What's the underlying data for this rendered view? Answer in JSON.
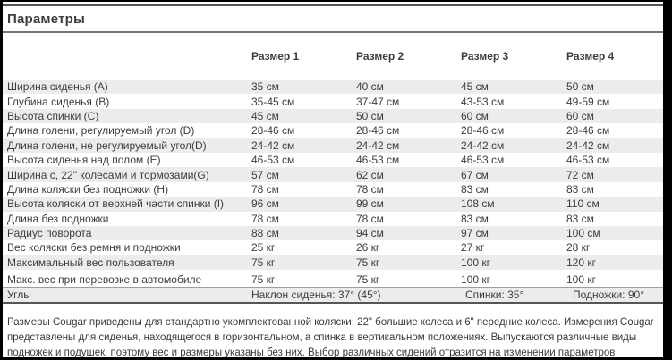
{
  "title": "Параметры",
  "table": {
    "col_headers": [
      "Размер 1",
      "Размер 2",
      "Размер 3",
      "Размер 4"
    ],
    "rows": [
      {
        "label": "Ширина сиденья (А)",
        "values": [
          "35 см",
          "40 см",
          "45 см",
          "50 см"
        ]
      },
      {
        "label": "Глубина сиденья (В)",
        "values": [
          "35-45 см",
          "37-47 см",
          "43-53 см",
          "49-59 см"
        ]
      },
      {
        "label": "Высота спинки (С)",
        "values": [
          "45 см",
          "50 см",
          "60 см",
          "60 см"
        ]
      },
      {
        "label": "Длина голени, регулируемый угол (D)",
        "values": [
          "28-46 см",
          "28-46 см",
          "28-46 см",
          "28-46 см"
        ]
      },
      {
        "label": "Длина голени, не регулируемый угол(D)",
        "values": [
          "24-42 см",
          "24-42 см",
          "24-42 см",
          "24-42 см"
        ]
      },
      {
        "label": "Высота сиденья над полом (Е)",
        "values": [
          "46-53 см",
          "46-53 см",
          "46-53 см",
          "46-53 см"
        ]
      },
      {
        "label": "Ширина с, 22\" колесами и тормозами(G)",
        "values": [
          "57 см",
          "62 см",
          "67 см",
          "72 см"
        ]
      },
      {
        "label": "Длина коляски без подножки (Н)",
        "values": [
          "78 см",
          "78 см",
          "83 см",
          "83 см"
        ]
      },
      {
        "label": "Высота коляски от верхней части спинки (I)",
        "values": [
          "96 см",
          "99 см",
          "108 см",
          "110 см"
        ]
      },
      {
        "label": "Длина без подножки",
        "values": [
          "78 см",
          "78 см",
          "83 см",
          "83 см"
        ]
      },
      {
        "label": "Радиус поворота",
        "values": [
          "88 см",
          "94 см",
          "97 см",
          "100 см"
        ]
      },
      {
        "label": "Вес коляски без ремня и подножки",
        "values": [
          "25 кг",
          "26 кг",
          "27 кг",
          "28 кг"
        ]
      },
      {
        "label": "Максимальный вес пользователя",
        "values": [
          "75 кг",
          "75 кг",
          "100 кг",
          "120 кг"
        ]
      },
      {
        "label": "Макс. вес при перевозке в автомобиле",
        "values": [
          "75 кг",
          "75 кг",
          "100 кг",
          "100 кг"
        ]
      }
    ],
    "angles": {
      "label": "Углы",
      "seat": "Наклон сиденья: 37° (45°)",
      "back": "Спинки: 35°",
      "foot": "Подножки: 90°"
    }
  },
  "footnote": {
    "text": "Размеры Cougar приведены для стандартно укомплектованной коляски: 22\" большие колеса и 6\" передние колеса. Измерения Cougar представлены для сиденья, находящегося в горизонтальном, а спинка в вертикальном положениях. Выпускаются различные виды подножек и подушек, поэтому вес и размеры указаны без них. Выбор различных сидений отразится на изменении параметров коляски."
  },
  "colors": {
    "stripe": "#ececec",
    "rule_dark": "#565656",
    "rule_light": "#757575",
    "text": "#3c3c3c",
    "frame_border": "#000000"
  }
}
